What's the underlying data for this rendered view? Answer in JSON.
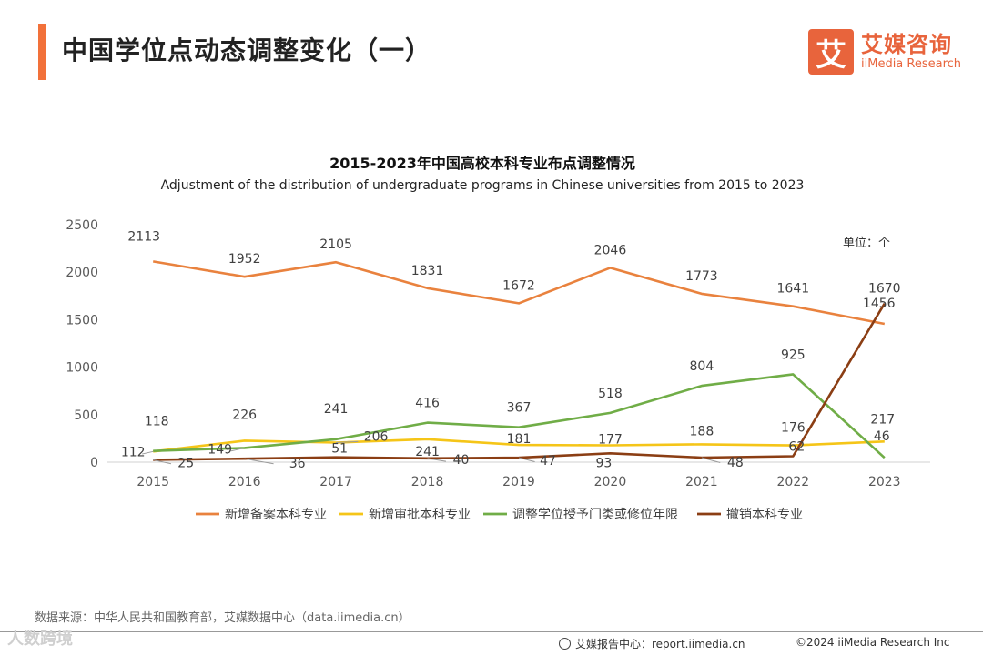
{
  "header": {
    "title": "中国学位点动态调整变化（一）",
    "accent_color": "#F2713A"
  },
  "brand": {
    "mark": "艾",
    "name_cn": "艾媒咨询",
    "name_en": "iiMedia Research",
    "color": "#E8643C"
  },
  "chart_data": {
    "type": "line",
    "title": "2015-2023年中国高校本科专业布点调整情况",
    "subtitle": "Adjustment of the distribution of undergraduate programs in Chinese universities from 2015 to 2023",
    "unit_label": "单位：个",
    "categories": [
      "2015",
      "2016",
      "2017",
      "2018",
      "2019",
      "2020",
      "2021",
      "2022",
      "2023"
    ],
    "ylim": [
      0,
      2500
    ],
    "yticks": [
      0,
      500,
      1000,
      1500,
      2000,
      2500
    ],
    "grid": false,
    "legend_position": "bottom",
    "series": [
      {
        "name": "新增备案本科专业",
        "color": "#E9823E",
        "values": [
          2113,
          1952,
          2105,
          1831,
          1672,
          2046,
          1773,
          1641,
          1456
        ]
      },
      {
        "name": "新增审批本科专业",
        "color": "#F5C518",
        "values": [
          112,
          226,
          206,
          241,
          181,
          177,
          188,
          176,
          217
        ]
      },
      {
        "name": "调整学位授予门类或修位年限",
        "color": "#70AD47",
        "values": [
          118,
          149,
          241,
          416,
          367,
          518,
          804,
          925,
          46
        ]
      },
      {
        "name": "撤销本科专业",
        "color": "#8B3E14",
        "values": [
          25,
          36,
          51,
          40,
          47,
          93,
          48,
          62,
          1670
        ]
      }
    ],
    "data_labels": [
      [
        "2113",
        "1952",
        "2105",
        "1831",
        "1672",
        "2046",
        "1773",
        "1641",
        "1456"
      ],
      [
        "112",
        "226",
        "206",
        "241",
        "181",
        "177",
        "188",
        "176",
        "217"
      ],
      [
        "118",
        "149",
        "241",
        "416",
        "367",
        "518",
        "804",
        "925",
        "46"
      ],
      [
        "25",
        "36",
        "51",
        "40",
        "47",
        "93",
        "48",
        "62",
        "1670"
      ]
    ]
  },
  "footer": {
    "source": "数据来源：中华人民共和国教育部，艾媒数据中心（data.iimedia.cn）",
    "report_center": "艾媒报告中心：report.iimedia.cn",
    "copyright": "©2024  iiMedia Research  Inc",
    "watermark": "人数跨境"
  }
}
